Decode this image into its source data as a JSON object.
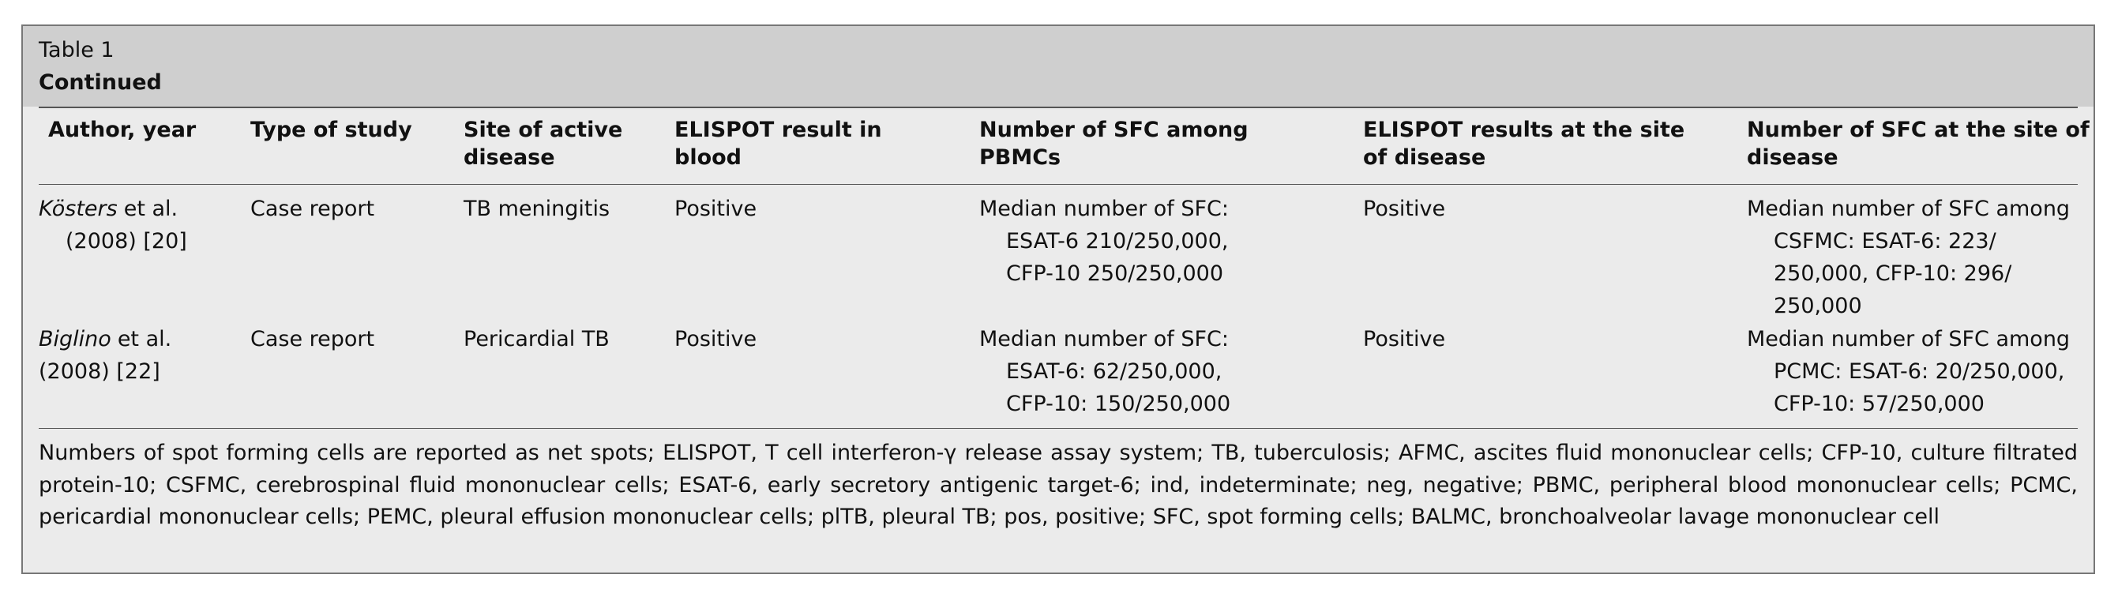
{
  "table": {
    "label": "Table 1",
    "title": "Continued",
    "columns": [
      [
        "Author, year"
      ],
      [
        "Type of study"
      ],
      [
        "Site of active",
        "disease"
      ],
      [
        "ELISPOT result in",
        "blood"
      ],
      [
        "Number of SFC among",
        "PBMCs"
      ],
      [
        "ELISPOT results at the site",
        "of disease"
      ],
      [
        "Number of SFC at the site of",
        "disease"
      ]
    ],
    "rows": [
      {
        "author": {
          "name": "Kösters",
          "rest": "et al.",
          "year": "(2008) [20]"
        },
        "cells": [
          [
            "Case report"
          ],
          [
            "TB meningitis"
          ],
          [
            "Positive"
          ],
          [
            "Median number of SFC:",
            "ESAT-6 210/250,000,",
            "CFP-10 250/250,000"
          ],
          [
            "Positive"
          ],
          [
            "Median number of SFC among",
            "CSFMC: ESAT-6: 223/",
            "250,000, CFP-10: 296/",
            "250,000"
          ]
        ]
      },
      {
        "author": {
          "name": "Biglino",
          "rest": "et al.",
          "year": "(2008) [22]"
        },
        "cells": [
          [
            "Case report"
          ],
          [
            "Pericardial TB"
          ],
          [
            "Positive"
          ],
          [
            "Median number of SFC:",
            "ESAT-6: 62/250,000,",
            "CFP-10: 150/250,000"
          ],
          [
            "Positive"
          ],
          [
            "Median number of SFC among",
            "PCMC: ESAT-6: 20/250,000,",
            "CFP-10: 57/250,000"
          ]
        ]
      }
    ],
    "footnote": "Numbers of spot forming cells are reported as net spots; ELISPOT, T cell interferon-γ release assay system; TB, tuberculosis; AFMC, ascites fluid mononuclear cells; CFP-10, culture filtrated protein-10; CSFMC, cerebrospinal fluid mononuclear cells; ESAT-6, early secretory antigenic target-6; ind, indeterminate; neg, negative; PBMC, peripheral blood mononuclear cells; PCMC, pericardial mononuclear cells; PEMC, pleural effusion mononuclear cells; plTB, pleural TB; pos, positive; SFC, spot forming cells; BALMC, bronchoalveolar lavage mononuclear cell"
  }
}
